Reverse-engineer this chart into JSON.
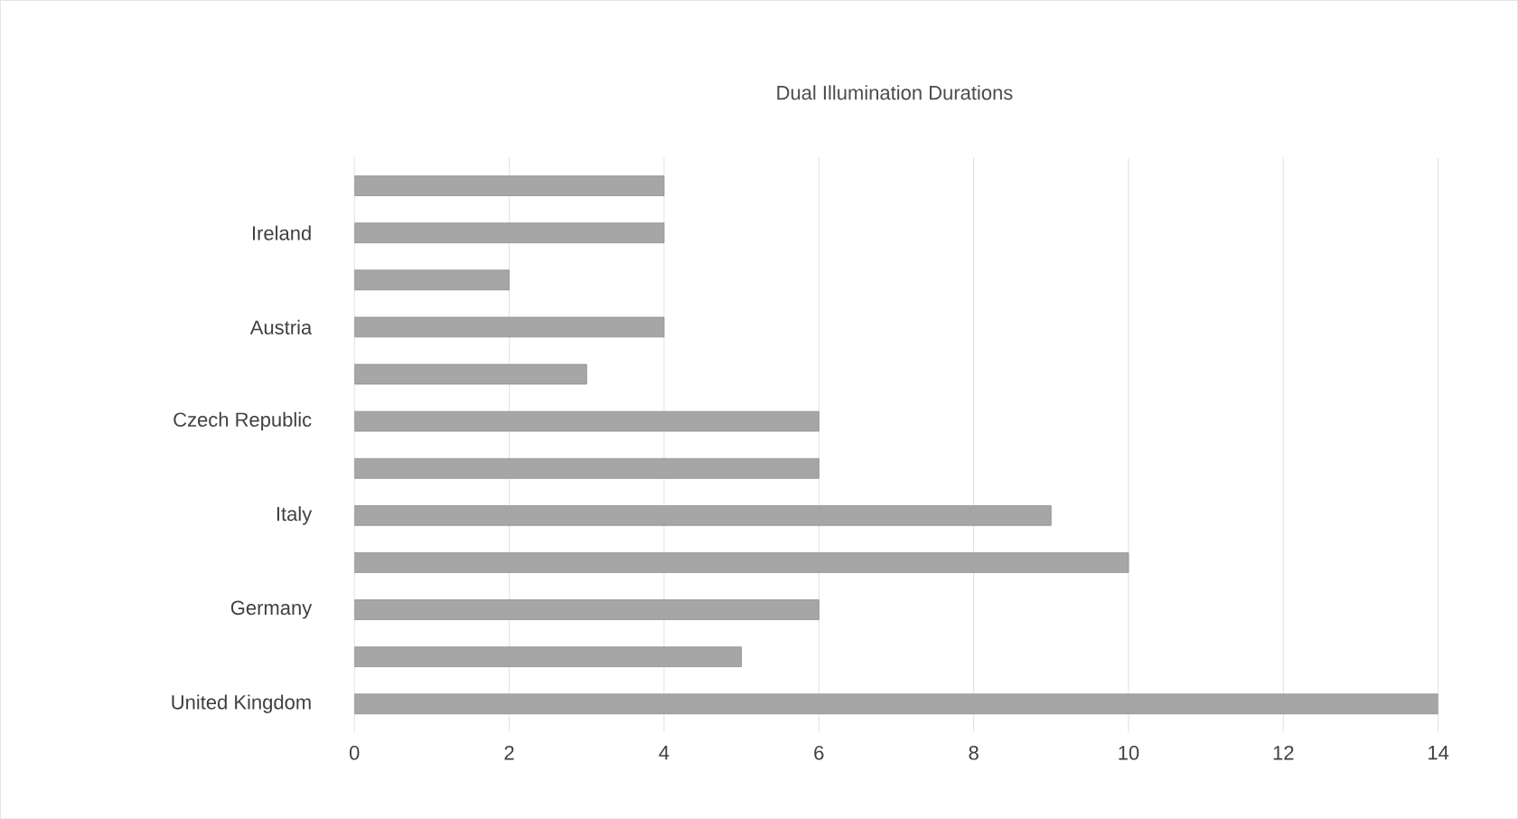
{
  "chart_data": {
    "type": "bar",
    "orientation": "horizontal",
    "title": "Dual Illumination Durations",
    "categories": [
      null,
      "Ireland",
      null,
      "Austria",
      null,
      "Czech Republic",
      null,
      "Italy",
      null,
      "Germany",
      null,
      "United Kingdom"
    ],
    "values": [
      4,
      4,
      2,
      4,
      3,
      6,
      6,
      9,
      10,
      6,
      5,
      14
    ],
    "color": "#a6a6a6",
    "xlim": [
      0,
      14
    ],
    "xticks": [
      0,
      2,
      4,
      6,
      8,
      10,
      12,
      14
    ],
    "grid": "x"
  }
}
